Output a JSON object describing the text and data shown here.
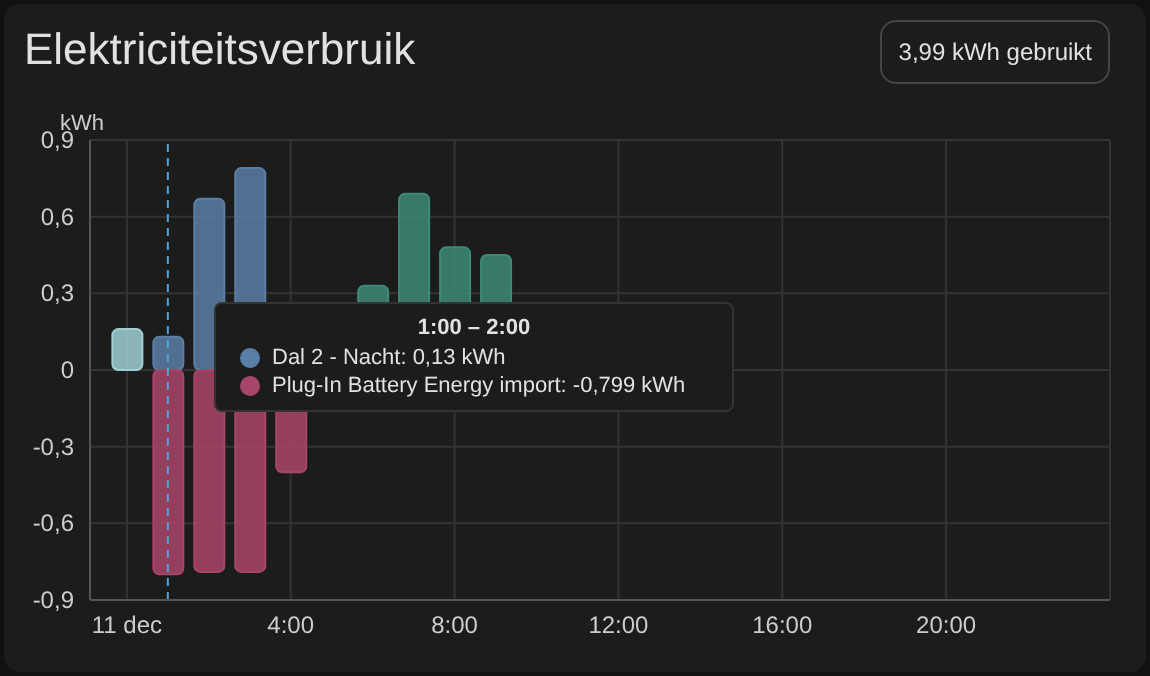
{
  "chart_data": {
    "type": "bar",
    "title": "Elektriciteitsverbruik",
    "subtitle": "3,99 kWh gebruikt",
    "ylabel": "kWh",
    "stacked": true,
    "x": [
      0,
      1,
      2,
      3,
      4,
      5,
      6,
      7,
      8,
      9
    ],
    "series": [
      {
        "color": "#9fcfd3",
        "values": [
          0.16,
          null,
          null,
          null,
          null,
          null,
          null,
          null,
          null,
          null
        ]
      },
      {
        "name": "Dal 2 - Nacht",
        "color": "#5a7fa6",
        "values": [
          null,
          0.13,
          0.67,
          0.79,
          null,
          null,
          null,
          null,
          null,
          null
        ]
      },
      {
        "color": "#3e8a78",
        "values": [
          null,
          null,
          null,
          null,
          null,
          null,
          0.33,
          0.69,
          0.48,
          0.45
        ]
      },
      {
        "name": "Plug-In Battery Energy import",
        "color": "#a9456a",
        "values": [
          null,
          -0.799,
          -0.79,
          -0.79,
          -0.4,
          null,
          null,
          null,
          null,
          null
        ]
      }
    ],
    "annotations": [
      "1:00 – 2:00",
      ": 0,13 kWh",
      ": -0,799 kWh"
    ],
    "xlim": [
      -0.9,
      24
    ],
    "xticks": [
      {
        "value": 0,
        "label": "11 dec"
      },
      {
        "value": 4,
        "label": "4:00"
      },
      {
        "value": 8,
        "label": "8:00"
      },
      {
        "value": 12,
        "label": "12:00"
      },
      {
        "value": 16,
        "label": "16:00"
      },
      {
        "value": 20,
        "label": "20:00"
      }
    ],
    "ylim": [
      -0.9,
      0.9
    ],
    "yticks": [
      {
        "value": -0.9,
        "label": "-0,9"
      },
      {
        "value": -0.6,
        "label": "-0,6"
      },
      {
        "value": -0.3,
        "label": "-0,3"
      },
      0,
      {
        "value": 0.3,
        "label": "0,3"
      },
      {
        "value": 0.6,
        "label": "0,6"
      },
      {
        "value": 0.9,
        "label": "0,9"
      }
    ],
    "ref_lines": [
      {
        "axis": "x",
        "value": 1,
        "color": "#4fa3d9",
        "line_style": "dashed"
      }
    ],
    "grid": true,
    "legend": "center"
  }
}
